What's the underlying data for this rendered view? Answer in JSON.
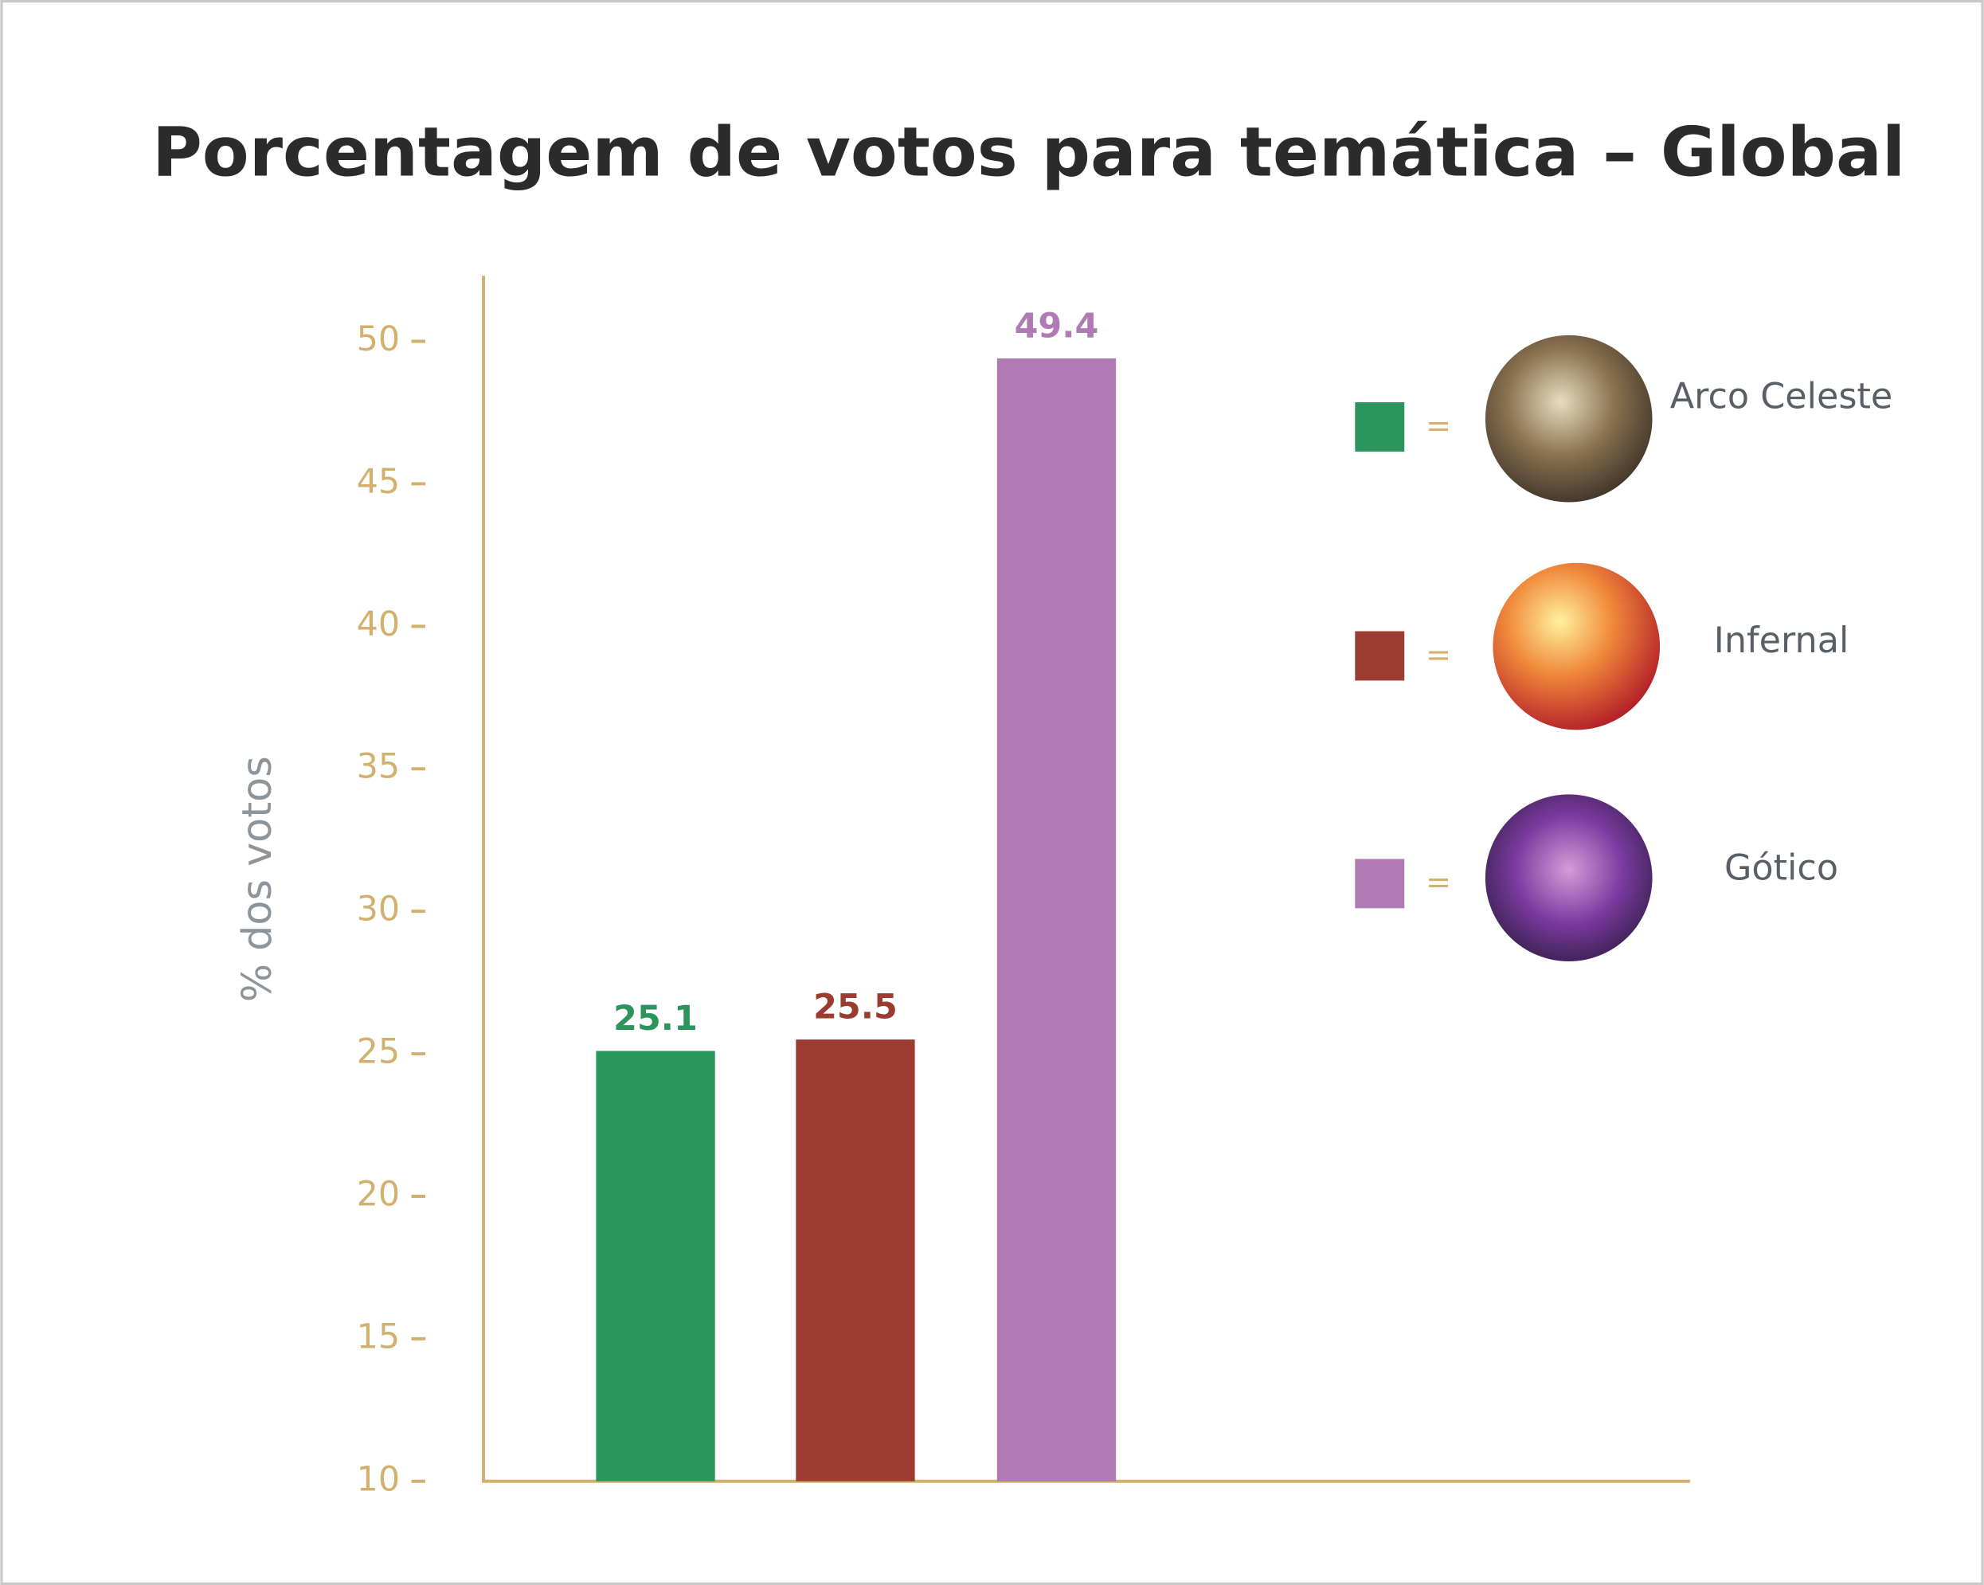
{
  "chart_data": {
    "type": "bar",
    "title": "Porcentagem de votos para temática – Global",
    "y_label": "% dos votos",
    "categories": [
      "Arco Celeste",
      "Infernal",
      "Gótico"
    ],
    "values": [
      25.1,
      25.5,
      49.4
    ],
    "colors": [
      "#2c955c",
      "#9c3b30",
      "#b07bb5"
    ],
    "ylim": [
      10,
      52.3
    ],
    "yticks": [
      10,
      15,
      20,
      25,
      30,
      35,
      40,
      45,
      50
    ],
    "legend_separator": "=",
    "legend": "right"
  }
}
